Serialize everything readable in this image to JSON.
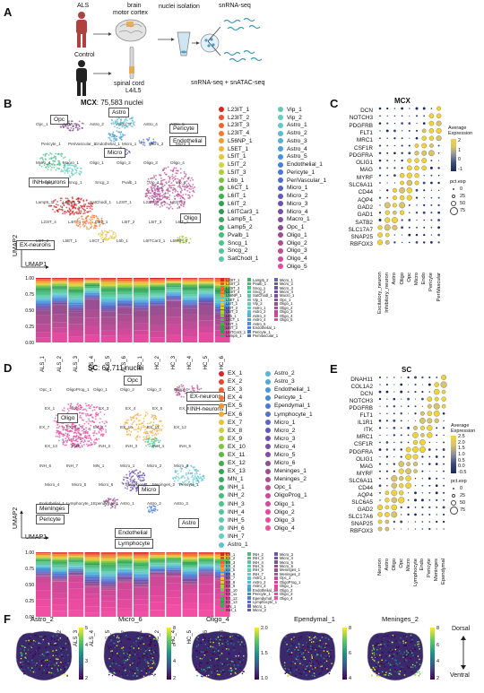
{
  "panels": {
    "A": "A",
    "B": "B",
    "C": "C",
    "D": "D",
    "E": "E",
    "F": "F"
  },
  "panelA": {
    "als": "ALS",
    "control": "Control",
    "brain": "brain",
    "motor_cortex": "motor cortex",
    "nuclei_isolation": "nuclei isolation",
    "spinal_cord": "spinal cord",
    "l4l5": "L4/L5",
    "snrnaseq": "snRNA-seq",
    "snrnaseq_atac": "snRNA-seq + snATAC-seq"
  },
  "panelB": {
    "title_bold": "MCX",
    "title_rest": ": 75,583 nuclei",
    "umap1": "UMAP1",
    "umap2": "UMAP2",
    "cluster_boxes": [
      "Opc",
      "Astro",
      "Pericyte",
      "Endothelial",
      "Micro",
      "INH-neurons",
      "Oligo",
      "EX-neurons"
    ],
    "umap_labels": [
      "Opc_1",
      "Astro_1",
      "Astro_2",
      "Astro_3",
      "Astro_4",
      "Astro_5",
      "Pericyte_1",
      "PeriVascular_1",
      "Endothelial_1",
      "Micro_1",
      "Micro_2",
      "Micro_3",
      "Micro_4",
      "Macro_1",
      "Oligo_1",
      "Oligo_2",
      "Oligo_3",
      "Oligo_4",
      "Oligo_5",
      "Sncg_1",
      "Sncg_2",
      "Pvalb_1",
      "Vip_1",
      "Vip_2",
      "Lamp5_1",
      "Lamp5_2",
      "SatChodl_1",
      "L23IT_1",
      "L23IT_2",
      "L23IT_3",
      "L23IT_4",
      "L4IT_1",
      "L5IT_1",
      "L5IT_2",
      "L5IT_3",
      "L6IT_1",
      "L6IT_2",
      "L5ET_1",
      "L6CT_1",
      "L6b_1",
      "L6ITCar3_1",
      "L56NP_1"
    ],
    "legend_col1": [
      "L23IT_1",
      "L23IT_2",
      "L23IT_3",
      "L23IT_4",
      "L56NP_1",
      "L5ET_1",
      "L5IT_1",
      "L5IT_2",
      "L5IT_3",
      "L6b_1",
      "L6CT_1",
      "L6IT_1",
      "L6IT_2",
      "L6ITCar3_1",
      "Lamp5_1",
      "Lamp5_2",
      "Pvalb_1",
      "Sncg_1",
      "Sncg_2",
      "SatChodl_1"
    ],
    "legend_col2": [
      "Vip_1",
      "Vip_2",
      "Astro_1",
      "Astro_2",
      "Astro_3",
      "Astro_4",
      "Astro_5",
      "Endothelial_1",
      "Pericyte_1",
      "PeriVascular_1",
      "Micro_1",
      "Micro_2",
      "Micro_3",
      "Micro_4",
      "Macro_1",
      "Opc_1",
      "Oligo_1",
      "Oligo_2",
      "Oligo_3",
      "Oligo_4",
      "Oligo_5"
    ],
    "legend_colors1": [
      "#d62728",
      "#e8542d",
      "#f0662f",
      "#f47a30",
      "#f39a2e",
      "#f6b032",
      "#e7c534",
      "#d4d33c",
      "#a9cf3b",
      "#7cc242",
      "#58b847",
      "#3daf4b",
      "#2ca24f",
      "#2e9a55",
      "#34a85c",
      "#3cb56a",
      "#43be78",
      "#4bc488",
      "#52c697",
      "#5cc8a5"
    ],
    "legend_colors2": [
      "#62cbb3",
      "#66cdc0",
      "#62c7cc",
      "#5bbcd3",
      "#55b0d8",
      "#4da2da",
      "#4693db",
      "#4485d7",
      "#4a78d2",
      "#526ccb",
      "#5a62c3",
      "#6359b9",
      "#6c52ae",
      "#7650a5",
      "#80509c",
      "#8b4f96",
      "#9a4f92",
      "#ab4f93",
      "#bc4d96",
      "#cf4a9a",
      "#e64a9f"
    ],
    "bar_y_ticks": [
      "1.00",
      "0.75",
      "0.50",
      "0.25",
      "0.00"
    ],
    "samples": [
      "ALS_1",
      "ALS_2",
      "ALS_3",
      "ALS_4",
      "ALS_5",
      "ALS_6",
      "HC_1",
      "HC_2",
      "HC_3",
      "HC_4",
      "HC_5",
      "HC_6"
    ]
  },
  "panelC": {
    "title": "MCX",
    "genes": [
      "DCN",
      "NOTCH3",
      "PDGFRB",
      "FLT1",
      "MRC1",
      "CSF1R",
      "PDGFRA",
      "OLIG1",
      "MAG",
      "MYRF",
      "SLC6A11",
      "CD44",
      "AQP4",
      "GAD2",
      "GAD1",
      "SATB2",
      "SLC17A7",
      "SNAP25",
      "RBFOX3"
    ],
    "celltypes": [
      "Excitatory_neuron",
      "Inhibitory_neuron",
      "Astro",
      "Oligo",
      "Opc",
      "Micro",
      "Endo",
      "Pericyte",
      "PeriVascular"
    ],
    "legend_title": "Average Expression",
    "legend_ticks": [
      "2",
      "1",
      "0",
      "-1"
    ],
    "pct_title": "pct.exp",
    "pct_ticks": [
      "0",
      "25",
      "50",
      "75"
    ]
  },
  "panelD": {
    "title_bold": "SC",
    "title_rest": ": 62,711 nuclei",
    "umap1": "UMAP1",
    "umap2": "UMAP2",
    "cluster_boxes": [
      "Opc",
      "EX-neurons",
      "INH-neurons",
      "Oligo",
      "Micro",
      "Meninges",
      "Pericyte",
      "Endothelial",
      "Lymphocyte",
      "Astro"
    ],
    "umap_labels": [
      "Opc_1",
      "OligoProg_1",
      "Oligo_1",
      "Oligo_2",
      "Oligo_3",
      "Oligo_4",
      "EX_1",
      "EX_2",
      "EX_3",
      "EX_4",
      "EX_5",
      "EX_6",
      "EX_7",
      "EX_8",
      "EX_9",
      "EX_10",
      "EX_11",
      "EX_12",
      "EX_13",
      "INH_1",
      "INH_2",
      "INH_3",
      "INH_4",
      "INH_5",
      "INH_6",
      "INH_7",
      "MN_1",
      "Micro_1",
      "Micro_2",
      "Micro_3",
      "Micro_4",
      "Micro_5",
      "Micro_6",
      "Meninges_1",
      "Meninges_2",
      "Pericyte_1",
      "Endothelial_1",
      "Lymphocyte_1",
      "Ependymal_1",
      "Astro_1",
      "Astro_2",
      "Astro_3"
    ],
    "legend_col1": [
      "EX_1",
      "EX_2",
      "EX_3",
      "EX_4",
      "EX_5",
      "EX_6",
      "EX_7",
      "EX_8",
      "EX_9",
      "EX_10",
      "EX_11",
      "EX_12",
      "EX_13",
      "MN_1",
      "INH_1",
      "INH_2",
      "INH_3",
      "INH_4",
      "INH_5",
      "INH_6",
      "INH_7",
      "Astro_1"
    ],
    "legend_col2": [
      "Astro_2",
      "Astro_3",
      "Endothelial_1",
      "Pericyte_1",
      "Ependymal_1",
      "Lymphocyte_1",
      "Micro_1",
      "Micro_2",
      "Micro_3",
      "Micro_4",
      "Micro_5",
      "Micro_6",
      "Meninges_1",
      "Meninges_2",
      "Opc_1",
      "OligoProg_1",
      "Oligo_1",
      "Oligo_2",
      "Oligo_3",
      "Oligo_4"
    ],
    "legend_colors1": [
      "#d62728",
      "#e5492c",
      "#ee6130",
      "#f37931",
      "#f4932f",
      "#f3ac31",
      "#e6c235",
      "#cfd13c",
      "#a8cd3d",
      "#7fc343",
      "#5bb947",
      "#3fae4c",
      "#31a553",
      "#35aa5e",
      "#3db66c",
      "#46be7b",
      "#4ec38b",
      "#56c69a",
      "#5ec9a9",
      "#64ccb8",
      "#66ccc5",
      "#5fc3cf"
    ],
    "legend_colors2": [
      "#58b7d6",
      "#50a9d9",
      "#4899db",
      "#448ad8",
      "#4a7cd3",
      "#5270cc",
      "#5a65c4",
      "#6359ba",
      "#6d52af",
      "#774fa4",
      "#81509b",
      "#8c4f95",
      "#9b4f92",
      "#ac4f93",
      "#bd4d96",
      "#cd4a99",
      "#d9489c",
      "#e34a9e",
      "#eb4ba0",
      "#f04fa3"
    ],
    "bar_y_ticks": [
      "1.00",
      "0.75",
      "0.50",
      "0.25",
      "0.00"
    ],
    "samples": [
      "ALS_1",
      "ALS_2",
      "ALS_3",
      "ALS_4",
      "ALS_5",
      "ALS_7",
      "HC_1",
      "HC_2",
      "HC_4",
      "HC_5",
      "HC_6",
      "HC_8"
    ]
  },
  "panelE": {
    "title": "SC",
    "genes": [
      "DNAH11",
      "COL1A2",
      "DCN",
      "NOTCH3",
      "PDGFRB",
      "FLT1",
      "IL1R1",
      "ITK",
      "MRC1",
      "CSF1R",
      "PDGFRA",
      "OLIG1",
      "MAG",
      "MYRF",
      "SLC6A11",
      "CD44",
      "AQP4",
      "SLC6A5",
      "GAD2",
      "SLC17A6",
      "SNAP25",
      "RBFOX3"
    ],
    "celltypes": [
      "Neuron",
      "Astro",
      "Oligo",
      "Opc",
      "Micro",
      "Lymphocyte",
      "Endo",
      "Pericyte",
      "Meninges",
      "Ependymal"
    ],
    "legend_title": "Average Expression",
    "legend_ticks": [
      "2.5",
      "2.0",
      "1.5",
      "1.0",
      "0.5",
      "0.0",
      "-0.5"
    ],
    "pct_title": "pct.exp",
    "pct_ticks": [
      "0",
      "25",
      "50",
      "75"
    ]
  },
  "panelF": {
    "maps": [
      {
        "title": "Astro_2",
        "ticks": [
          "5",
          "4",
          "3",
          "2"
        ]
      },
      {
        "title": "Micro_6",
        "ticks": [
          "8",
          "6",
          "4",
          "2"
        ]
      },
      {
        "title": "Oligo_4",
        "ticks": [
          "2.0",
          "1.5",
          "1.0"
        ]
      },
      {
        "title": "Ependymal_1",
        "ticks": [
          "8",
          "6",
          "4"
        ]
      },
      {
        "title": "Meninges_2",
        "ticks": [
          "8",
          "6",
          "4",
          "2"
        ]
      }
    ],
    "dorsal": "Dorsal",
    "ventral": "Ventral"
  },
  "colors": {
    "viridis": [
      "#440154",
      "#3b528b",
      "#21918c",
      "#5ec962",
      "#fde725"
    ],
    "dotplot_scale": [
      "#1a2a5e",
      "#3b4a7a",
      "#8a8f9a",
      "#d8c46a",
      "#f2d43a"
    ]
  }
}
